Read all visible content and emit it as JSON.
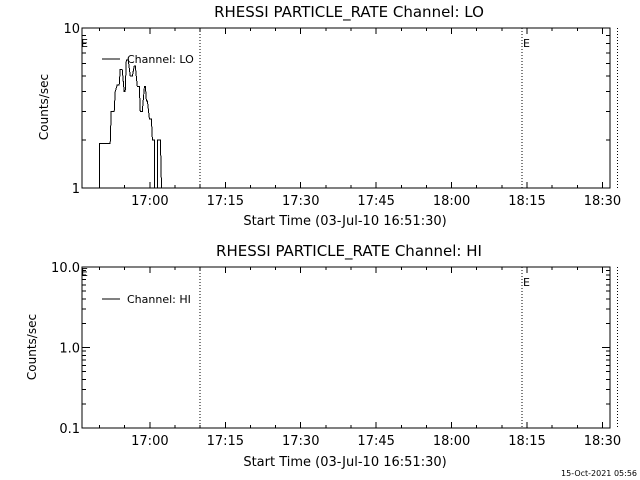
{
  "footer": {
    "timestamp": "15-Oct-2021 05:56"
  },
  "chart_data": [
    {
      "type": "line",
      "title": "RHESSI PARTICLE_RATE Channel: LO",
      "xlabel": "Start Time (03-Jul-10 16:51:30)",
      "ylabel": "Counts/sec",
      "yscale": "log",
      "ylim": [
        1,
        10
      ],
      "yticks": [
        1,
        10
      ],
      "ytick_labels": [
        "1",
        "10"
      ],
      "xlim_minutes": [
        -5,
        100
      ],
      "x_ticks": [
        {
          "label": "17:00",
          "minutes": 8.5
        },
        {
          "label": "17:15",
          "minutes": 23.5
        },
        {
          "label": "17:30",
          "minutes": 38.5
        },
        {
          "label": "17:45",
          "minutes": 53.5
        },
        {
          "label": "18:00",
          "minutes": 68.5
        },
        {
          "label": "18:15",
          "minutes": 83.5
        },
        {
          "label": "18:30",
          "minutes": 98.5
        }
      ],
      "event_lines": [
        {
          "minutes": 18.5,
          "label": ""
        },
        {
          "minutes": 82.5,
          "label": "E"
        },
        {
          "minutes": 101.5,
          "label": ""
        }
      ],
      "left_marker": "E",
      "legend": {
        "label": "Channel: LO",
        "placement": "top-left"
      },
      "series": [
        {
          "name": "Channel: LO",
          "x": [
            -1.5,
            -1.5,
            0.6,
            0.8,
            1.4,
            1.6,
            2.0,
            2.4,
            2.6,
            3.0,
            3.4,
            3.6,
            3.8,
            4.2,
            4.6,
            5.0,
            5.4,
            5.6,
            6.0,
            6.4,
            6.6,
            7.0,
            7.4,
            7.6,
            7.8,
            8.0,
            8.4,
            8.8,
            9.0,
            9.4,
            9.4,
            10.0,
            10.0,
            10.6,
            10.8,
            11.2
          ],
          "y": [
            1,
            1.9,
            1.9,
            3.0,
            3.0,
            4.0,
            4.4,
            4.4,
            5.5,
            5.5,
            4.0,
            4.0,
            6.3,
            6.3,
            5.0,
            5.0,
            5.8,
            5.8,
            4.3,
            4.3,
            3.0,
            3.0,
            4.3,
            4.3,
            3.5,
            3.5,
            2.7,
            2.7,
            2.0,
            2.0,
            1,
            1,
            2.0,
            2.0,
            1,
            1
          ]
        }
      ]
    },
    {
      "type": "line",
      "title": "RHESSI PARTICLE_RATE Channel: HI",
      "xlabel": "Start Time (03-Jul-10 16:51:30)",
      "ylabel": "Counts/sec",
      "yscale": "log",
      "ylim": [
        0.1,
        10
      ],
      "yticks": [
        0.1,
        1,
        10
      ],
      "ytick_labels": [
        "0.1",
        "1.0",
        "10.0"
      ],
      "xlim_minutes": [
        -5,
        100
      ],
      "x_ticks": [
        {
          "label": "17:00",
          "minutes": 8.5
        },
        {
          "label": "17:15",
          "minutes": 23.5
        },
        {
          "label": "17:30",
          "minutes": 38.5
        },
        {
          "label": "17:45",
          "minutes": 53.5
        },
        {
          "label": "18:00",
          "minutes": 68.5
        },
        {
          "label": "18:15",
          "minutes": 83.5
        },
        {
          "label": "18:30",
          "minutes": 98.5
        }
      ],
      "event_lines": [
        {
          "minutes": 18.5,
          "label": ""
        },
        {
          "minutes": 82.5,
          "label": "E"
        },
        {
          "minutes": 101.5,
          "label": ""
        }
      ],
      "left_marker": "E",
      "legend": {
        "label": "Channel: HI",
        "placement": "top-left"
      },
      "series": [
        {
          "name": "Channel: HI",
          "x": [],
          "y": []
        }
      ]
    }
  ]
}
